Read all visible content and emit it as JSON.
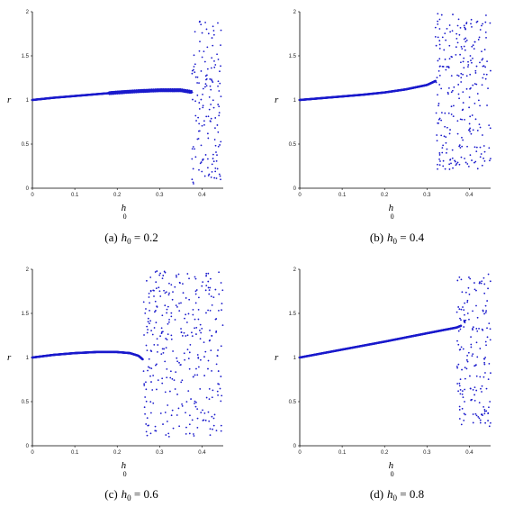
{
  "chart_data": [
    {
      "type": "scatter",
      "caption": {
        "tag": "(a)",
        "var": "h",
        "sub": "0",
        "rest": " = 0.2"
      },
      "xlabel": "h",
      "xlabel_sub": "0",
      "ylabel": "r",
      "xlim": [
        0,
        0.45
      ],
      "ylim": [
        0,
        2
      ],
      "xticks": [
        "0",
        "0.1",
        "0.2",
        "0.3",
        "0.4"
      ],
      "yticks": [
        "0",
        "0.5",
        "1",
        "1.5",
        "2"
      ],
      "curve": [
        [
          0,
          1.0
        ],
        [
          0.05,
          1.025
        ],
        [
          0.1,
          1.045
        ],
        [
          0.15,
          1.065
        ],
        [
          0.2,
          1.085
        ],
        [
          0.25,
          1.1
        ],
        [
          0.3,
          1.11
        ],
        [
          0.35,
          1.11
        ],
        [
          0.375,
          1.09
        ]
      ],
      "wiggle": {
        "x_start": 0.18,
        "x_end": 0.375,
        "amp": 0.018
      },
      "chaos": {
        "x_range": [
          0.375,
          0.445
        ],
        "y_range": [
          0.05,
          1.9
        ],
        "count": 150,
        "seed": 11
      },
      "grid": false
    },
    {
      "type": "scatter",
      "caption": {
        "tag": "(b)",
        "var": "h",
        "sub": "0",
        "rest": " = 0.4"
      },
      "xlabel": "h",
      "xlabel_sub": "0",
      "ylabel": "r",
      "xlim": [
        0,
        0.45
      ],
      "ylim": [
        0,
        2
      ],
      "xticks": [
        "0",
        "0.1",
        "0.2",
        "0.3",
        "0.4"
      ],
      "yticks": [
        "0",
        "0.5",
        "1",
        "1.5",
        "2"
      ],
      "curve": [
        [
          0,
          1.0
        ],
        [
          0.05,
          1.02
        ],
        [
          0.1,
          1.04
        ],
        [
          0.15,
          1.06
        ],
        [
          0.2,
          1.085
        ],
        [
          0.25,
          1.12
        ],
        [
          0.3,
          1.17
        ],
        [
          0.32,
          1.215
        ]
      ],
      "wiggle": null,
      "chaos": {
        "x_range": [
          0.32,
          0.45
        ],
        "y_range": [
          0.2,
          1.98
        ],
        "count": 260,
        "seed": 23
      },
      "grid": false
    },
    {
      "type": "scatter",
      "caption": {
        "tag": "(c)",
        "var": "h",
        "sub": "0",
        "rest": " = 0.6"
      },
      "xlabel": "h",
      "xlabel_sub": "0",
      "ylabel": "r",
      "xlim": [
        0,
        0.45
      ],
      "ylim": [
        0,
        2
      ],
      "xticks": [
        "0",
        "0.1",
        "0.2",
        "0.3",
        "0.4"
      ],
      "yticks": [
        "0",
        "0.5",
        "1",
        "1.5",
        "2"
      ],
      "curve": [
        [
          0,
          1.0
        ],
        [
          0.05,
          1.03
        ],
        [
          0.1,
          1.05
        ],
        [
          0.15,
          1.062
        ],
        [
          0.2,
          1.062
        ],
        [
          0.23,
          1.05
        ],
        [
          0.25,
          1.02
        ],
        [
          0.26,
          0.98
        ]
      ],
      "wiggle": null,
      "chaos": {
        "x_range": [
          0.26,
          0.45
        ],
        "y_range": [
          0.1,
          1.98
        ],
        "count": 330,
        "seed": 37
      },
      "grid": false
    },
    {
      "type": "scatter",
      "caption": {
        "tag": "(d)",
        "var": "h",
        "sub": "0",
        "rest": " = 0.8"
      },
      "xlabel": "h",
      "xlabel_sub": "0",
      "ylabel": "r",
      "xlim": [
        0,
        0.45
      ],
      "ylim": [
        0,
        2
      ],
      "xticks": [
        "0",
        "0.1",
        "0.2",
        "0.3",
        "0.4"
      ],
      "yticks": [
        "0",
        "0.5",
        "1",
        "1.5",
        "2"
      ],
      "curve": [
        [
          0,
          1.0
        ],
        [
          0.1,
          1.09
        ],
        [
          0.2,
          1.18
        ],
        [
          0.3,
          1.275
        ],
        [
          0.37,
          1.34
        ],
        [
          0.38,
          1.36
        ]
      ],
      "wiggle": null,
      "chaos": {
        "x_range": [
          0.37,
          0.45
        ],
        "y_range": [
          0.2,
          1.98
        ],
        "count": 170,
        "seed": 53
      },
      "grid": false
    }
  ]
}
